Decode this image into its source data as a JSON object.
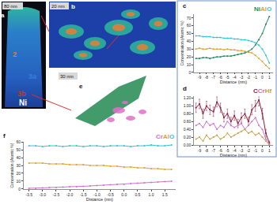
{
  "images": [
    {
      "label": "a",
      "scale_bar": "80 nm",
      "texts": [
        "2",
        "3a",
        "3b",
        "Ni"
      ]
    },
    {
      "label": "b",
      "scale_bar": "20 nm"
    },
    {
      "label": "e",
      "scale_bar": "30 nm"
    }
  ],
  "chart_data": [
    {
      "type": "line",
      "title": "c",
      "x_label": "Distance (nm)",
      "y_label": "Concentration (Atomic %)",
      "x": [
        -9.5,
        -9,
        -8.5,
        -8,
        -7.5,
        -7,
        -6.5,
        -6,
        -5.5,
        -5,
        -4.5,
        -4,
        -3.5,
        -3,
        -2.5,
        -2,
        -1.5,
        -1,
        -0.5,
        0,
        0.5,
        1
      ],
      "xlim": [
        -9.8,
        1.5
      ],
      "xticks": [
        -9,
        -8,
        -7,
        -6,
        -5,
        -4,
        -3,
        -2,
        -1,
        0,
        1
      ],
      "ylim": [
        0,
        75
      ],
      "yticks": [
        0,
        10,
        20,
        30,
        40,
        50,
        60,
        70
      ],
      "legend": "upper right",
      "grid": false,
      "marker": "circle",
      "line_style": "solid",
      "series": [
        {
          "name": "Ni",
          "color": "#1a8a5a",
          "values": [
            18,
            18,
            19,
            19,
            18,
            19,
            20,
            20,
            21,
            21,
            21,
            22,
            23,
            24,
            25,
            27,
            30,
            35,
            42,
            50,
            62,
            72
          ]
        },
        {
          "name": "Al",
          "color": "#e0a030",
          "values": [
            30,
            31,
            30,
            30,
            31,
            30,
            30,
            30,
            29,
            30,
            29,
            29,
            28,
            28,
            27,
            26,
            25,
            22,
            18,
            14,
            9,
            5
          ]
        },
        {
          "name": "O",
          "color": "#33c4d6",
          "values": [
            47,
            47,
            46,
            46,
            46,
            45,
            45,
            45,
            44,
            44,
            44,
            43,
            43,
            42,
            42,
            41,
            40,
            38,
            35,
            30,
            22,
            12
          ]
        }
      ]
    },
    {
      "type": "line",
      "title": "d",
      "x_label": "Distance (nm)",
      "x": [
        -9.5,
        -9,
        -8.5,
        -8,
        -7.5,
        -7,
        -6.5,
        -6,
        -5.5,
        -5,
        -4.5,
        -4,
        -3.5,
        -3,
        -2.5,
        -2,
        -1.5,
        -1,
        -0.5,
        0,
        0.5,
        1
      ],
      "xlim": [
        -9.8,
        1.5
      ],
      "xticks": [
        -9,
        -8,
        -7,
        -6,
        -5,
        -4,
        -3,
        -2,
        -1,
        0,
        1
      ],
      "ylim": [
        0,
        1.25
      ],
      "yticks": [
        {
          "value": 0,
          "label": "0.00"
        },
        {
          "value": 0.2,
          "label": "0.20"
        },
        {
          "value": 0.4,
          "label": "0.40"
        },
        {
          "value": 0.6,
          "label": "0.60"
        },
        {
          "value": 0.8,
          "label": "0.80"
        },
        {
          "value": 1,
          "label": "1.00"
        },
        {
          "value": 1.2,
          "label": "1.20"
        }
      ],
      "legend": "upper right",
      "grid": false,
      "marker": "circle",
      "line_style": "solid",
      "series": [
        {
          "name": "C",
          "color": "#8b1a3a",
          "values": [
            0.95,
            1.05,
            0.8,
            1.0,
            0.9,
            0.85,
            1.1,
            0.95,
            0.7,
            0.8,
            0.6,
            0.75,
            0.55,
            0.7,
            0.8,
            0.6,
            0.9,
            1.0,
            1.15,
            0.8,
            0.3,
            0.05
          ],
          "error": [
            0.12,
            0.12,
            0.12,
            0.12,
            0.12,
            0.12,
            0.13,
            0.12,
            0.11,
            0.12,
            0.11,
            0.12,
            0.11,
            0.12,
            0.12,
            0.11,
            0.13,
            0.14,
            0.15,
            0.14,
            0.1,
            0.05
          ]
        },
        {
          "name": "Cr",
          "color": "#d070d0",
          "values": [
            0.5,
            0.55,
            0.45,
            0.6,
            0.5,
            0.55,
            0.4,
            0.5,
            0.45,
            0.6,
            0.5,
            0.45,
            0.5,
            0.55,
            0.4,
            0.5,
            0.6,
            0.7,
            0.5,
            0.4,
            0.15,
            0.02
          ]
        },
        {
          "name": "Hf",
          "color": "#c8a040",
          "values": [
            0.15,
            0.2,
            0.1,
            0.25,
            0.15,
            0.2,
            0.25,
            0.15,
            0.2,
            0.3,
            0.2,
            0.25,
            0.3,
            0.35,
            0.4,
            0.3,
            0.35,
            0.25,
            0.3,
            0.2,
            0.1,
            0.0
          ]
        }
      ]
    },
    {
      "type": "line",
      "title": "f",
      "x_label": "Distance (nm)",
      "y_label": "Concentration (Atomic %)",
      "x": [
        -3.5,
        -3.25,
        -3,
        -2.75,
        -2.5,
        -2.25,
        -2,
        -1.75,
        -1.5,
        -1.25,
        -1,
        -0.75,
        -0.5,
        -0.25,
        0,
        0.25,
        0.5,
        0.75,
        1,
        1.25,
        1.5,
        1.75
      ],
      "xlim": [
        -3.7,
        1.9
      ],
      "xticks": [
        -3.5,
        {
          "value": -3,
          "label": "-3.0"
        },
        -2.5,
        {
          "value": -2,
          "label": "-2.0"
        },
        -1.5,
        {
          "value": -1,
          "label": "-1.0"
        },
        -0.5,
        {
          "value": 0,
          "label": "0.0"
        },
        0.5,
        {
          "value": 1,
          "label": "1.0"
        },
        1.5
      ],
      "ylim": [
        0,
        60
      ],
      "yticks": [
        0,
        10,
        20,
        30,
        40,
        50,
        60
      ],
      "legend": "upper right",
      "grid": false,
      "marker": "circle",
      "line_style": "solid",
      "series": [
        {
          "name": "Cr",
          "color": "#d070d0",
          "values": [
            1,
            1,
            1.5,
            2,
            2,
            2.5,
            3,
            3,
            3.5,
            4,
            4.5,
            5,
            5.5,
            6,
            6,
            7,
            7.5,
            8,
            8.5,
            9,
            9.5,
            10
          ]
        },
        {
          "name": "Al",
          "color": "#e0a030",
          "values": [
            33,
            33,
            33,
            32,
            32,
            32,
            31,
            31,
            31,
            30,
            30,
            30,
            29,
            29,
            28,
            28,
            27,
            27,
            26,
            26,
            25,
            25
          ]
        },
        {
          "name": "O",
          "color": "#33c4d6",
          "values": [
            55,
            55,
            54,
            55,
            55,
            54,
            55,
            55,
            54,
            55,
            55,
            54,
            55,
            55,
            55,
            54,
            55,
            55,
            56,
            55,
            55,
            56
          ]
        }
      ]
    }
  ]
}
